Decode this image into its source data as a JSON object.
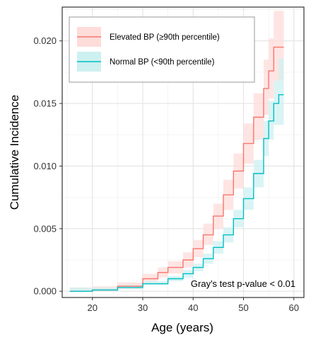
{
  "chart_data": {
    "type": "line",
    "xlabel": "Age (years)",
    "ylabel": "Cumulative Incidence",
    "xlim": [
      14,
      62
    ],
    "ylim": [
      -0.0005,
      0.0227
    ],
    "x_ticks": [
      20,
      30,
      40,
      50,
      60
    ],
    "y_ticks": [
      0.0,
      0.005,
      0.01,
      0.015,
      0.02
    ],
    "x_tick_labels": [
      "20",
      "30",
      "40",
      "50",
      "60"
    ],
    "y_tick_labels": [
      "0.000",
      "0.005",
      "0.010",
      "0.015",
      "0.020"
    ],
    "grid": true,
    "legend_position": "top-left",
    "annotation": "Gray's test p-value < 0.01",
    "series": [
      {
        "name": "Elevated BP (≥90th percentile)",
        "color": "#F8766D",
        "band_color": "#FDDCDA",
        "x": [
          15.5,
          20,
          25,
          30,
          33,
          35,
          38,
          40,
          42,
          44,
          46,
          48,
          50,
          52,
          54,
          55,
          56,
          57,
          58
        ],
        "y": [
          0.0,
          0.0001,
          0.0004,
          0.001,
          0.0015,
          0.0019,
          0.0025,
          0.0034,
          0.0045,
          0.006,
          0.0077,
          0.0096,
          0.0118,
          0.0139,
          0.0162,
          0.0176,
          0.0195,
          0.0195,
          0.0195
        ],
        "lower": [
          0.0,
          0.0,
          0.0002,
          0.0007,
          0.0011,
          0.0014,
          0.0019,
          0.0027,
          0.0037,
          0.005,
          0.0065,
          0.0082,
          0.0102,
          0.0121,
          0.0141,
          0.0154,
          0.0168,
          0.0168,
          0.0168
        ],
        "upper": [
          0.0003,
          0.0004,
          0.0007,
          0.0014,
          0.0019,
          0.0024,
          0.0031,
          0.0041,
          0.0054,
          0.007,
          0.0089,
          0.011,
          0.0134,
          0.0158,
          0.0185,
          0.0202,
          0.0224,
          0.0224,
          0.0224
        ]
      },
      {
        "name": "Normal BP (<90th percentile)",
        "color": "#00BFC4",
        "band_color": "#CDF0F1",
        "x": [
          15.5,
          20,
          25,
          30,
          35,
          38,
          40,
          42,
          44,
          46,
          48,
          50,
          52,
          54,
          55,
          56,
          57,
          58
        ],
        "y": [
          0.0,
          0.0001,
          0.0003,
          0.0006,
          0.001,
          0.0014,
          0.0019,
          0.0026,
          0.0035,
          0.0045,
          0.0058,
          0.0074,
          0.0094,
          0.0122,
          0.0136,
          0.015,
          0.0157,
          0.0157
        ],
        "lower": [
          0.0,
          0.0,
          0.0002,
          0.0005,
          0.0008,
          0.0011,
          0.0016,
          0.0022,
          0.003,
          0.0039,
          0.0051,
          0.0065,
          0.0083,
          0.0108,
          0.0121,
          0.0133,
          0.0133,
          0.0133
        ],
        "upper": [
          0.0003,
          0.0003,
          0.0005,
          0.0008,
          0.0012,
          0.0017,
          0.0022,
          0.003,
          0.004,
          0.0051,
          0.0065,
          0.0083,
          0.0105,
          0.0136,
          0.0152,
          0.0168,
          0.0186,
          0.0186
        ]
      }
    ]
  }
}
